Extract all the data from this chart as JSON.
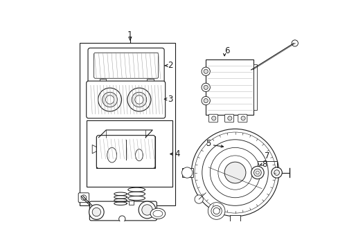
{
  "background_color": "#ffffff",
  "line_color": "#1a1a1a",
  "fig_width": 4.89,
  "fig_height": 3.6,
  "dpi": 100,
  "label_fontsize": 8.5,
  "lw": 0.8
}
